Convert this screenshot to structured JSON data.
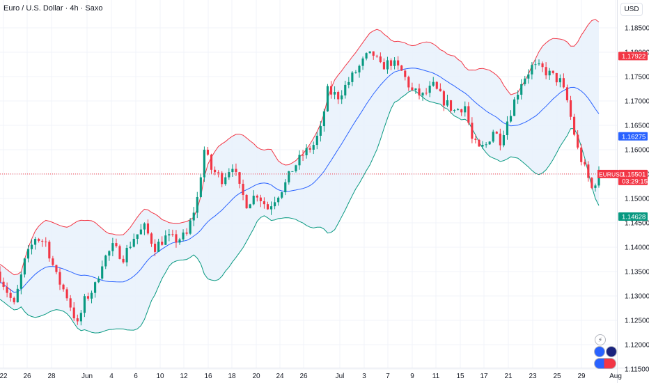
{
  "title": "Euro / U.S. Dollar · 4h · Saxo",
  "currency": "USD",
  "colors": {
    "up": "#089981",
    "down": "#f23645",
    "upper_band": "#f23645",
    "lower_band": "#089981",
    "basis": "#2962ff",
    "band_fill": "#e8f1fb",
    "price_line": "#f23645",
    "label_red": "#f23645",
    "label_blue": "#2962ff",
    "label_green": "#089981"
  },
  "icons": [
    "lightning-icon",
    "euro-flag-icon",
    "us-flag-icon",
    "eur-usd-flag-icon"
  ],
  "chart_data": {
    "type": "candlestick",
    "symbol": "EURUSD",
    "timeframe": "4h",
    "y_ticks": [
      "1.18500",
      "1.18000",
      "1.17500",
      "1.17000",
      "1.16500",
      "1.16000",
      "1.15500",
      "1.15000",
      "1.14500",
      "1.14000",
      "1.13500",
      "1.13000",
      "1.12500",
      "1.12000",
      "1.11500"
    ],
    "x_ticks": [
      "22",
      "26",
      "28",
      "Jun",
      "4",
      "6",
      "10",
      "12",
      "16",
      "18",
      "20",
      "24",
      "26",
      "Jul",
      "3",
      "7",
      "9",
      "11",
      "15",
      "17",
      "21",
      "23",
      "25",
      "29",
      "Aug"
    ],
    "ylim": [
      1.115,
      1.187
    ],
    "close_anchors": [
      [
        0,
        1.134
      ],
      [
        4,
        1.128
      ],
      [
        7,
        1.137
      ],
      [
        10,
        1.142
      ],
      [
        13,
        1.141
      ],
      [
        16,
        1.134
      ],
      [
        19,
        1.13
      ],
      [
        22,
        1.124
      ],
      [
        24,
        1.129
      ],
      [
        27,
        1.132
      ],
      [
        29,
        1.137
      ],
      [
        32,
        1.14
      ],
      [
        35,
        1.138
      ],
      [
        38,
        1.142
      ],
      [
        41,
        1.144
      ],
      [
        44,
        1.14
      ],
      [
        47,
        1.142
      ],
      [
        50,
        1.1415
      ],
      [
        53,
        1.1425
      ],
      [
        56,
        1.15
      ],
      [
        58,
        1.16
      ],
      [
        60,
        1.156
      ],
      [
        63,
        1.154
      ],
      [
        66,
        1.157
      ],
      [
        68,
        1.152
      ],
      [
        70,
        1.149
      ],
      [
        73,
        1.151
      ],
      [
        76,
        1.148
      ],
      [
        79,
        1.151
      ],
      [
        81,
        1.153
      ],
      [
        83,
        1.156
      ],
      [
        86,
        1.159
      ],
      [
        89,
        1.161
      ],
      [
        91,
        1.164
      ],
      [
        93,
        1.172
      ],
      [
        96,
        1.171
      ],
      [
        99,
        1.174
      ],
      [
        102,
        1.177
      ],
      [
        104,
        1.179
      ],
      [
        106,
        1.1795
      ],
      [
        108,
        1.177
      ],
      [
        111,
        1.178
      ],
      [
        114,
        1.176
      ],
      [
        117,
        1.172
      ],
      [
        120,
        1.171
      ],
      [
        123,
        1.173
      ],
      [
        126,
        1.17
      ],
      [
        129,
        1.168
      ],
      [
        132,
        1.169
      ],
      [
        134,
        1.162
      ],
      [
        136,
        1.16
      ],
      [
        138,
        1.161
      ],
      [
        140,
        1.164
      ],
      [
        142,
        1.162
      ],
      [
        145,
        1.168
      ],
      [
        148,
        1.174
      ],
      [
        151,
        1.177
      ],
      [
        154,
        1.1765
      ],
      [
        157,
        1.175
      ],
      [
        159,
        1.174
      ],
      [
        161,
        1.17
      ],
      [
        164,
        1.16
      ],
      [
        166,
        1.156
      ],
      [
        168,
        1.152
      ],
      [
        170,
        1.155
      ]
    ],
    "bollinger_upper_last": 1.17922,
    "bollinger_basis_last": 1.16275,
    "bollinger_lower_last": 1.14628,
    "last_price": {
      "symbol": "EURUSD",
      "price": "1.15501",
      "countdown": "03:29:15"
    },
    "band_labels": {
      "upper": "1.17922",
      "basis": "1.16275",
      "lower": "1.14628"
    }
  }
}
